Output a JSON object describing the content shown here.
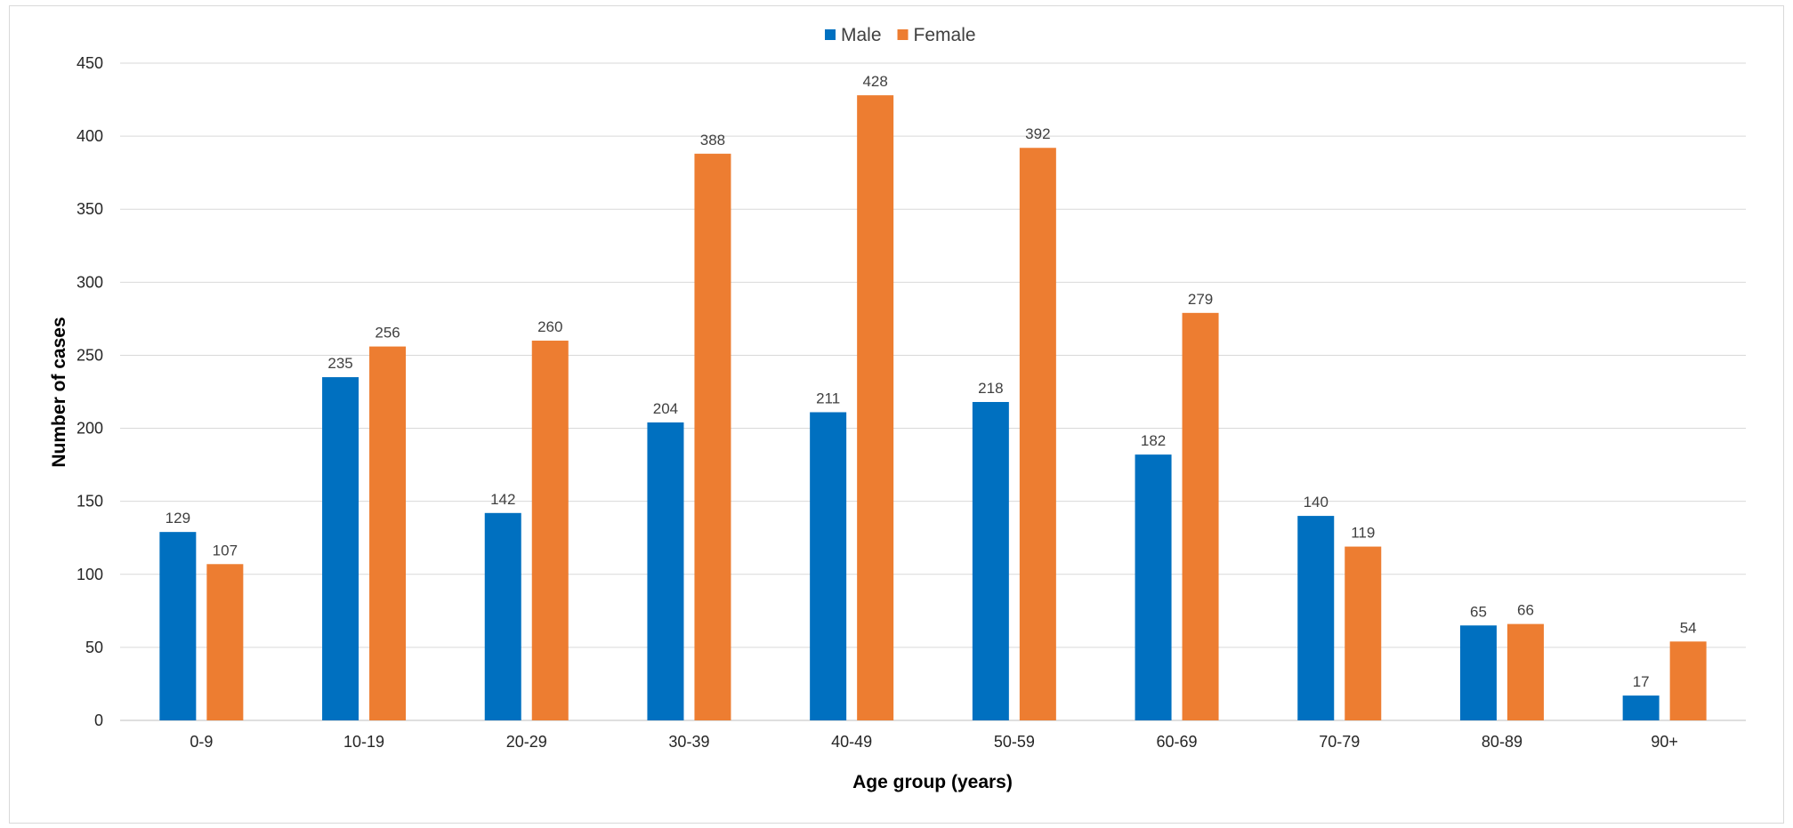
{
  "chart_data": {
    "type": "bar",
    "title": "",
    "xlabel": "Age group (years)",
    "ylabel": "Number of cases",
    "categories": [
      "0-9",
      "10-19",
      "20-29",
      "30-39",
      "40-49",
      "50-59",
      "60-69",
      "70-79",
      "80-89",
      "90+"
    ],
    "series": [
      {
        "name": "Male",
        "color": "#0070C0",
        "values": [
          129,
          235,
          142,
          204,
          211,
          218,
          182,
          140,
          65,
          17
        ]
      },
      {
        "name": "Female",
        "color": "#ED7D31",
        "values": [
          107,
          256,
          260,
          388,
          428,
          392,
          279,
          119,
          66,
          54
        ]
      }
    ],
    "ylim": [
      0,
      450
    ],
    "yticks": [
      0,
      50,
      100,
      150,
      200,
      250,
      300,
      350,
      400,
      450
    ],
    "grid": true,
    "legend_position": "top-center",
    "data_labels": true
  }
}
